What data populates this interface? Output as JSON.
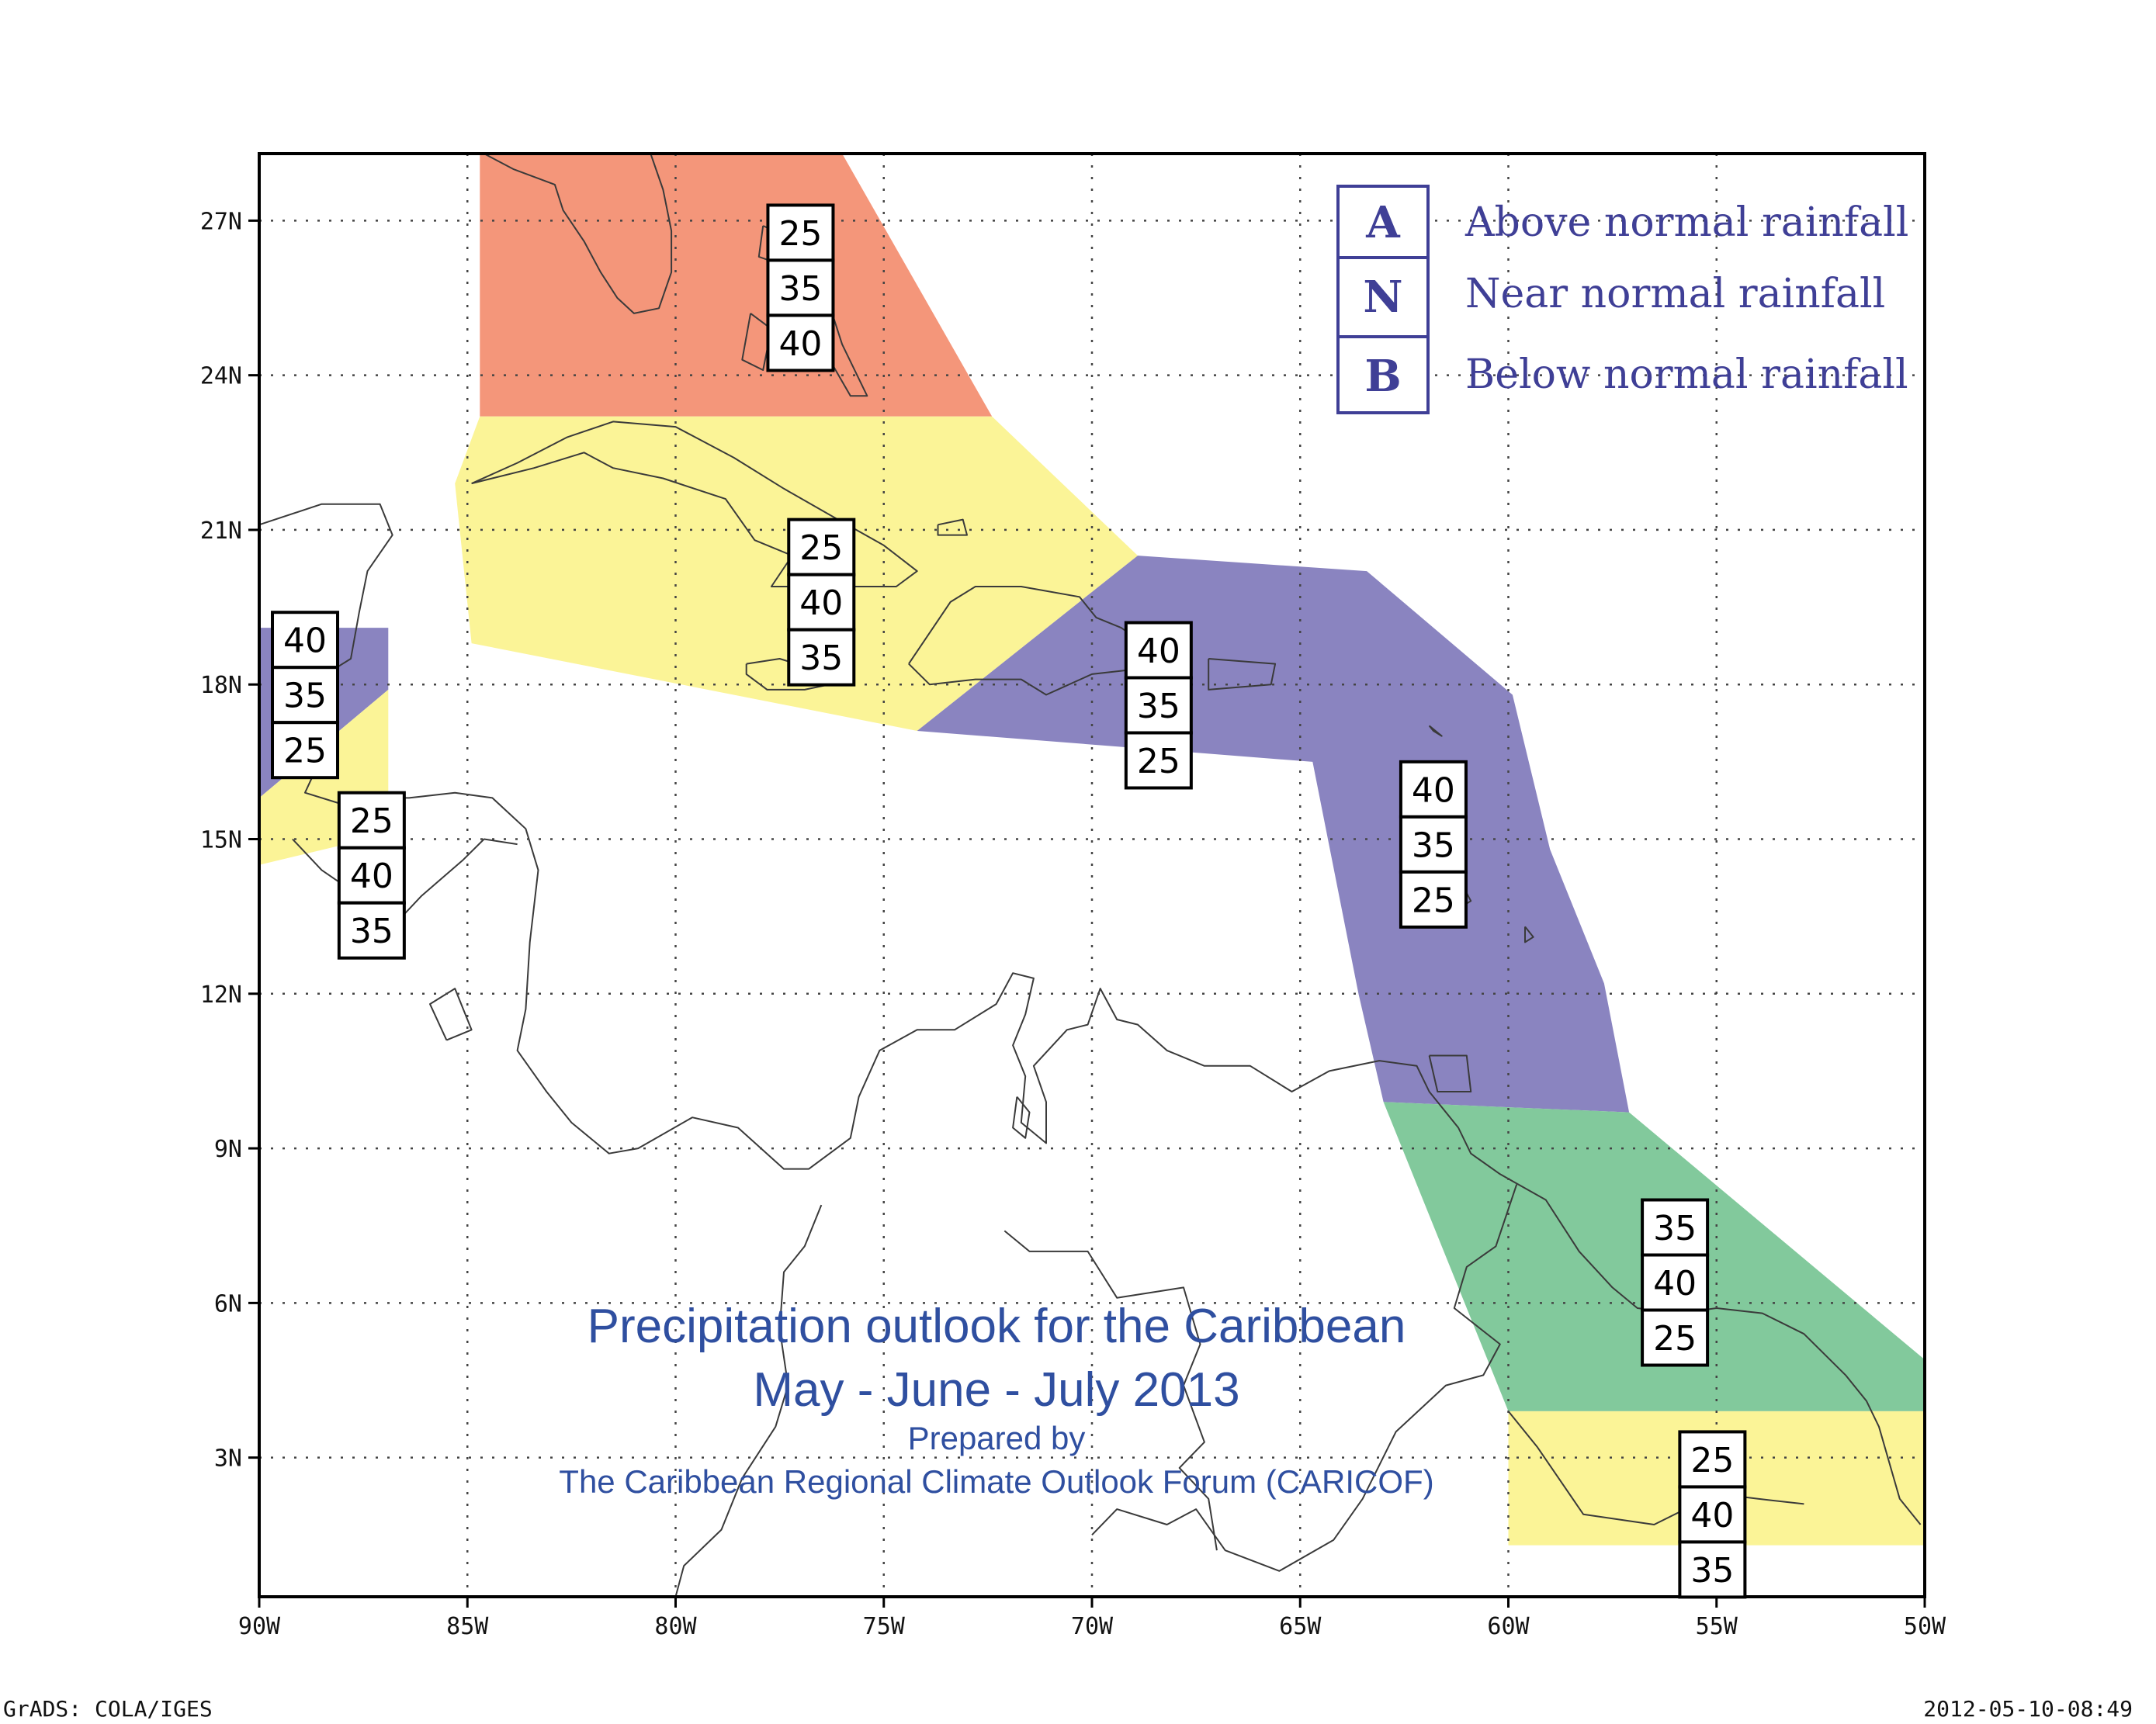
{
  "map": {
    "lon_range": [
      -90,
      -50
    ],
    "lat_range": [
      0.3,
      28.3
    ],
    "grid": true
  },
  "axes": {
    "x_ticks": [
      {
        "lon": -90,
        "label": "90W"
      },
      {
        "lon": -85,
        "label": "85W"
      },
      {
        "lon": -80,
        "label": "80W"
      },
      {
        "lon": -75,
        "label": "75W"
      },
      {
        "lon": -70,
        "label": "70W"
      },
      {
        "lon": -65,
        "label": "65W"
      },
      {
        "lon": -60,
        "label": "60W"
      },
      {
        "lon": -55,
        "label": "55W"
      },
      {
        "lon": -50,
        "label": "50W"
      }
    ],
    "y_ticks": [
      {
        "lat": 3,
        "label": "3N"
      },
      {
        "lat": 6,
        "label": "6N"
      },
      {
        "lat": 9,
        "label": "9N"
      },
      {
        "lat": 12,
        "label": "12N"
      },
      {
        "lat": 15,
        "label": "15N"
      },
      {
        "lat": 18,
        "label": "18N"
      },
      {
        "lat": 21,
        "label": "21N"
      },
      {
        "lat": 24,
        "label": "24N"
      },
      {
        "lat": 27,
        "label": "27N"
      }
    ]
  },
  "colors": {
    "above": "#f4967a",
    "near": "#fbf497",
    "below": "#8a84c0",
    "green": "#82c99c",
    "legend_text": "#3f3f96",
    "title_text": "#2f4fa0"
  },
  "regions": [
    {
      "id": "bahamas-florida",
      "fill": "above",
      "polygon": [
        [
          -84.7,
          28.3
        ],
        [
          -76.0,
          28.3
        ],
        [
          -72.4,
          23.2
        ],
        [
          -84.7,
          23.2
        ]
      ]
    },
    {
      "id": "greater-antilles",
      "fill": "near",
      "polygon": [
        [
          -84.7,
          23.2
        ],
        [
          -72.4,
          23.2
        ],
        [
          -68.9,
          20.5
        ],
        [
          -74.2,
          17.1
        ],
        [
          -84.9,
          18.8
        ],
        [
          -85.3,
          21.9
        ]
      ]
    },
    {
      "id": "northeast-caribbean",
      "fill": "below",
      "polygon": [
        [
          -68.9,
          20.5
        ],
        [
          -63.4,
          20.2
        ],
        [
          -59.9,
          17.8
        ],
        [
          -59.0,
          14.8
        ],
        [
          -57.7,
          12.2
        ],
        [
          -57.1,
          9.7
        ],
        [
          -63.0,
          9.9
        ],
        [
          -63.6,
          12.0
        ],
        [
          -64.7,
          16.5
        ],
        [
          -74.2,
          17.1
        ]
      ]
    },
    {
      "id": "belize-north",
      "fill": "below",
      "polygon": [
        [
          -90.0,
          19.1
        ],
        [
          -86.9,
          19.1
        ],
        [
          -86.9,
          17.9
        ],
        [
          -90.0,
          15.8
        ]
      ]
    },
    {
      "id": "belize-south",
      "fill": "near",
      "polygon": [
        [
          -90.0,
          15.8
        ],
        [
          -86.9,
          17.9
        ],
        [
          -86.9,
          15.1
        ],
        [
          -90.0,
          14.5
        ]
      ]
    },
    {
      "id": "guianas-north",
      "fill": "green",
      "polygon": [
        [
          -63.0,
          9.9
        ],
        [
          -57.1,
          9.7
        ],
        [
          -50.0,
          4.9
        ],
        [
          -50.0,
          3.9
        ],
        [
          -60.0,
          3.9
        ]
      ]
    },
    {
      "id": "guianas-south",
      "fill": "near",
      "polygon": [
        [
          -60.0,
          3.9
        ],
        [
          -50.0,
          3.9
        ],
        [
          -50.0,
          1.3
        ],
        [
          -60.0,
          1.3
        ]
      ]
    }
  ],
  "probability_boxes": [
    {
      "lon": -77.0,
      "lat": 27.3,
      "values": [
        "25",
        "35",
        "40"
      ]
    },
    {
      "lon": -76.5,
      "lat": 21.2,
      "values": [
        "25",
        "40",
        "35"
      ]
    },
    {
      "lon": -88.9,
      "lat": 19.4,
      "values": [
        "40",
        "35",
        "25"
      ]
    },
    {
      "lon": -87.3,
      "lat": 15.9,
      "values": [
        "25",
        "40",
        "35"
      ]
    },
    {
      "lon": -68.4,
      "lat": 19.2,
      "values": [
        "40",
        "35",
        "25"
      ]
    },
    {
      "lon": -61.8,
      "lat": 16.5,
      "values": [
        "40",
        "35",
        "25"
      ]
    },
    {
      "lon": -56.0,
      "lat": 8.0,
      "values": [
        "35",
        "40",
        "25"
      ]
    },
    {
      "lon": -55.1,
      "lat": 3.5,
      "values": [
        "25",
        "40",
        "35"
      ]
    }
  ],
  "legend": [
    {
      "letter": "A",
      "label": "Above normal rainfall"
    },
    {
      "letter": "N",
      "label": "Near normal rainfall"
    },
    {
      "letter": "B",
      "label": "Below normal rainfall"
    }
  ],
  "title": {
    "line1": "Precipitation outlook for the Caribbean",
    "line2": "May - June - July 2013",
    "line3": "Prepared by",
    "line4": "The Caribbean Regional Climate Outlook Forum (CARICOF)"
  },
  "footer": {
    "left": "GrADS: COLA/IGES",
    "right": "2012-05-10-08:49"
  },
  "coastlines": [
    [
      [
        -84.6,
        28.3
      ],
      [
        -83.9,
        28.0
      ],
      [
        -82.9,
        27.7
      ],
      [
        -82.7,
        27.2
      ],
      [
        -82.2,
        26.6
      ],
      [
        -81.8,
        26.0
      ],
      [
        -81.4,
        25.5
      ],
      [
        -81.0,
        25.2
      ],
      [
        -80.4,
        25.3
      ],
      [
        -80.1,
        26.0
      ],
      [
        -80.1,
        26.8
      ],
      [
        -80.3,
        27.6
      ],
      [
        -80.6,
        28.3
      ]
    ],
    [
      [
        -84.9,
        21.9
      ],
      [
        -83.8,
        22.3
      ],
      [
        -82.6,
        22.8
      ],
      [
        -81.5,
        23.1
      ],
      [
        -80.0,
        23.0
      ],
      [
        -78.6,
        22.4
      ],
      [
        -77.4,
        21.8
      ],
      [
        -76.1,
        21.2
      ],
      [
        -75.0,
        20.7
      ],
      [
        -74.2,
        20.2
      ],
      [
        -74.7,
        19.9
      ],
      [
        -76.2,
        19.9
      ],
      [
        -77.7,
        19.9
      ],
      [
        -77.2,
        20.5
      ],
      [
        -78.1,
        20.8
      ],
      [
        -78.8,
        21.6
      ],
      [
        -80.3,
        22.0
      ],
      [
        -81.5,
        22.2
      ],
      [
        -82.2,
        22.5
      ],
      [
        -83.4,
        22.2
      ],
      [
        -84.9,
        21.9
      ]
    ],
    [
      [
        -78.3,
        18.4
      ],
      [
        -77.5,
        18.5
      ],
      [
        -76.7,
        18.3
      ],
      [
        -76.3,
        18.0
      ],
      [
        -76.9,
        17.9
      ],
      [
        -77.8,
        17.9
      ],
      [
        -78.3,
        18.2
      ],
      [
        -78.3,
        18.4
      ]
    ],
    [
      [
        -74.4,
        18.4
      ],
      [
        -73.4,
        19.6
      ],
      [
        -72.8,
        19.9
      ],
      [
        -71.7,
        19.9
      ],
      [
        -70.3,
        19.7
      ],
      [
        -69.9,
        19.3
      ],
      [
        -69.3,
        19.1
      ],
      [
        -68.4,
        18.6
      ],
      [
        -68.9,
        18.3
      ],
      [
        -70.0,
        18.2
      ],
      [
        -71.1,
        17.8
      ],
      [
        -71.7,
        18.1
      ],
      [
        -72.8,
        18.1
      ],
      [
        -73.9,
        18.0
      ],
      [
        -74.4,
        18.4
      ]
    ],
    [
      [
        -67.2,
        18.5
      ],
      [
        -65.6,
        18.4
      ],
      [
        -65.7,
        18.0
      ],
      [
        -67.2,
        17.9
      ],
      [
        -67.2,
        18.5
      ]
    ],
    [
      [
        -77.9,
        26.9
      ],
      [
        -77.1,
        26.6
      ],
      [
        -77.3,
        26.1
      ],
      [
        -78.0,
        26.3
      ],
      [
        -77.9,
        26.9
      ]
    ],
    [
      [
        -78.2,
        25.2
      ],
      [
        -77.7,
        24.9
      ],
      [
        -77.9,
        24.1
      ],
      [
        -78.4,
        24.3
      ],
      [
        -78.2,
        25.2
      ]
    ],
    [
      [
        -76.2,
        25.1
      ],
      [
        -76.0,
        24.6
      ],
      [
        -75.7,
        24.1
      ],
      [
        -75.4,
        23.6
      ],
      [
        -75.8,
        23.6
      ],
      [
        -76.3,
        24.3
      ],
      [
        -76.2,
        25.1
      ]
    ],
    [
      [
        -73.7,
        21.1
      ],
      [
        -73.1,
        21.2
      ],
      [
        -73.0,
        20.9
      ],
      [
        -73.7,
        20.9
      ],
      [
        -73.7,
        21.1
      ]
    ],
    [
      [
        -61.9,
        17.2
      ],
      [
        -61.6,
        17.0
      ],
      [
        -61.8,
        17.1
      ],
      [
        -61.9,
        17.2
      ]
    ],
    [
      [
        -61.8,
        16.4
      ],
      [
        -61.2,
        16.3
      ],
      [
        -61.5,
        16.0
      ],
      [
        -61.8,
        16.4
      ]
    ],
    [
      [
        -61.2,
        14.9
      ],
      [
        -61.0,
        14.6
      ],
      [
        -61.2,
        14.5
      ],
      [
        -61.2,
        14.9
      ]
    ],
    [
      [
        -61.1,
        14.1
      ],
      [
        -60.9,
        13.8
      ],
      [
        -61.1,
        13.7
      ],
      [
        -61.1,
        14.1
      ]
    ],
    [
      [
        -61.9,
        10.8
      ],
      [
        -61.0,
        10.8
      ],
      [
        -60.9,
        10.1
      ],
      [
        -61.7,
        10.1
      ],
      [
        -61.9,
        10.8
      ]
    ],
    [
      [
        -59.6,
        13.3
      ],
      [
        -59.4,
        13.1
      ],
      [
        -59.6,
        13.0
      ],
      [
        -59.6,
        13.3
      ]
    ],
    [
      [
        -90.0,
        21.1
      ],
      [
        -88.5,
        21.5
      ],
      [
        -87.1,
        21.5
      ],
      [
        -86.8,
        20.9
      ],
      [
        -87.4,
        20.2
      ],
      [
        -87.6,
        19.4
      ],
      [
        -87.8,
        18.5
      ],
      [
        -88.2,
        18.3
      ],
      [
        -88.3,
        17.5
      ],
      [
        -88.5,
        16.6
      ],
      [
        -88.9,
        15.9
      ],
      [
        -88.1,
        15.7
      ],
      [
        -87.5,
        15.8
      ],
      [
        -86.4,
        15.8
      ],
      [
        -85.3,
        15.9
      ],
      [
        -84.4,
        15.8
      ],
      [
        -83.6,
        15.2
      ],
      [
        -83.3,
        14.4
      ],
      [
        -83.5,
        13.0
      ],
      [
        -83.6,
        11.7
      ],
      [
        -83.8,
        10.9
      ],
      [
        -83.1,
        10.1
      ],
      [
        -82.5,
        9.5
      ],
      [
        -81.6,
        8.9
      ],
      [
        -80.9,
        9.0
      ],
      [
        -79.6,
        9.6
      ],
      [
        -78.5,
        9.4
      ],
      [
        -77.4,
        8.6
      ],
      [
        -76.8,
        8.6
      ],
      [
        -75.8,
        9.2
      ],
      [
        -75.6,
        10.0
      ],
      [
        -75.1,
        10.9
      ],
      [
        -74.2,
        11.3
      ],
      [
        -73.3,
        11.3
      ],
      [
        -72.3,
        11.8
      ],
      [
        -71.9,
        12.4
      ],
      [
        -71.4,
        12.3
      ],
      [
        -71.6,
        11.6
      ],
      [
        -71.9,
        11.0
      ],
      [
        -71.6,
        10.4
      ],
      [
        -71.7,
        9.5
      ],
      [
        -71.1,
        9.1
      ],
      [
        -71.1,
        9.9
      ],
      [
        -71.4,
        10.6
      ],
      [
        -70.6,
        11.3
      ],
      [
        -70.1,
        11.4
      ],
      [
        -69.8,
        12.1
      ],
      [
        -69.4,
        11.5
      ],
      [
        -68.9,
        11.4
      ],
      [
        -68.2,
        10.9
      ],
      [
        -67.3,
        10.6
      ],
      [
        -66.2,
        10.6
      ],
      [
        -65.2,
        10.1
      ],
      [
        -64.3,
        10.5
      ],
      [
        -63.1,
        10.7
      ],
      [
        -62.2,
        10.6
      ],
      [
        -61.9,
        10.1
      ],
      [
        -61.2,
        9.4
      ],
      [
        -60.9,
        8.9
      ],
      [
        -60.2,
        8.5
      ],
      [
        -59.1,
        8.0
      ],
      [
        -58.3,
        7.0
      ],
      [
        -57.5,
        6.3
      ],
      [
        -56.9,
        5.9
      ],
      [
        -55.9,
        5.8
      ],
      [
        -55.0,
        5.9
      ],
      [
        -53.9,
        5.8
      ],
      [
        -52.9,
        5.4
      ],
      [
        -51.9,
        4.6
      ],
      [
        -51.4,
        4.1
      ],
      [
        -51.1,
        3.6
      ],
      [
        -50.6,
        2.2
      ],
      [
        -50.1,
        1.7
      ]
    ],
    [
      [
        -85.5,
        11.1
      ],
      [
        -84.9,
        11.3
      ],
      [
        -85.3,
        12.1
      ],
      [
        -85.9,
        11.8
      ],
      [
        -85.5,
        11.1
      ]
    ],
    [
      [
        -71.8,
        10.0
      ],
      [
        -71.5,
        9.7
      ],
      [
        -71.6,
        9.2
      ],
      [
        -71.9,
        9.4
      ],
      [
        -71.8,
        10.0
      ]
    ],
    [
      [
        -76.5,
        7.9
      ],
      [
        -76.9,
        7.1
      ],
      [
        -77.4,
        6.6
      ],
      [
        -77.5,
        5.5
      ],
      [
        -77.3,
        4.4
      ],
      [
        -77.6,
        3.6
      ],
      [
        -78.4,
        2.6
      ],
      [
        -78.9,
        1.6
      ],
      [
        -79.8,
        0.9
      ],
      [
        -80.0,
        0.3
      ]
    ],
    [
      [
        -60.0,
        3.9
      ],
      [
        -59.3,
        3.2
      ],
      [
        -58.2,
        1.9
      ],
      [
        -56.5,
        1.7
      ],
      [
        -55.0,
        2.3
      ],
      [
        -54.0,
        2.2
      ],
      [
        -52.9,
        2.1
      ]
    ],
    [
      [
        -70.0,
        1.5
      ],
      [
        -69.4,
        2.0
      ],
      [
        -68.2,
        1.7
      ],
      [
        -67.5,
        2.0
      ],
      [
        -66.8,
        1.2
      ],
      [
        -65.5,
        0.8
      ],
      [
        -64.2,
        1.4
      ],
      [
        -63.5,
        2.2
      ],
      [
        -62.7,
        3.5
      ],
      [
        -61.5,
        4.4
      ],
      [
        -60.6,
        4.6
      ],
      [
        -60.2,
        5.2
      ],
      [
        -61.3,
        5.9
      ],
      [
        -61.0,
        6.7
      ],
      [
        -60.3,
        7.1
      ],
      [
        -59.8,
        8.3
      ]
    ],
    [
      [
        -72.1,
        7.4
      ],
      [
        -71.5,
        7.0
      ],
      [
        -70.1,
        7.0
      ],
      [
        -69.4,
        6.1
      ],
      [
        -67.8,
        6.3
      ],
      [
        -67.4,
        5.2
      ],
      [
        -67.8,
        4.4
      ],
      [
        -67.3,
        3.3
      ],
      [
        -67.9,
        2.8
      ],
      [
        -67.2,
        2.2
      ],
      [
        -67.0,
        1.2
      ]
    ],
    [
      [
        -89.2,
        15.0
      ],
      [
        -88.5,
        14.4
      ],
      [
        -87.6,
        13.9
      ],
      [
        -86.8,
        13.3
      ],
      [
        -86.1,
        13.9
      ],
      [
        -85.1,
        14.6
      ],
      [
        -84.6,
        15.0
      ],
      [
        -83.8,
        14.9
      ]
    ]
  ]
}
